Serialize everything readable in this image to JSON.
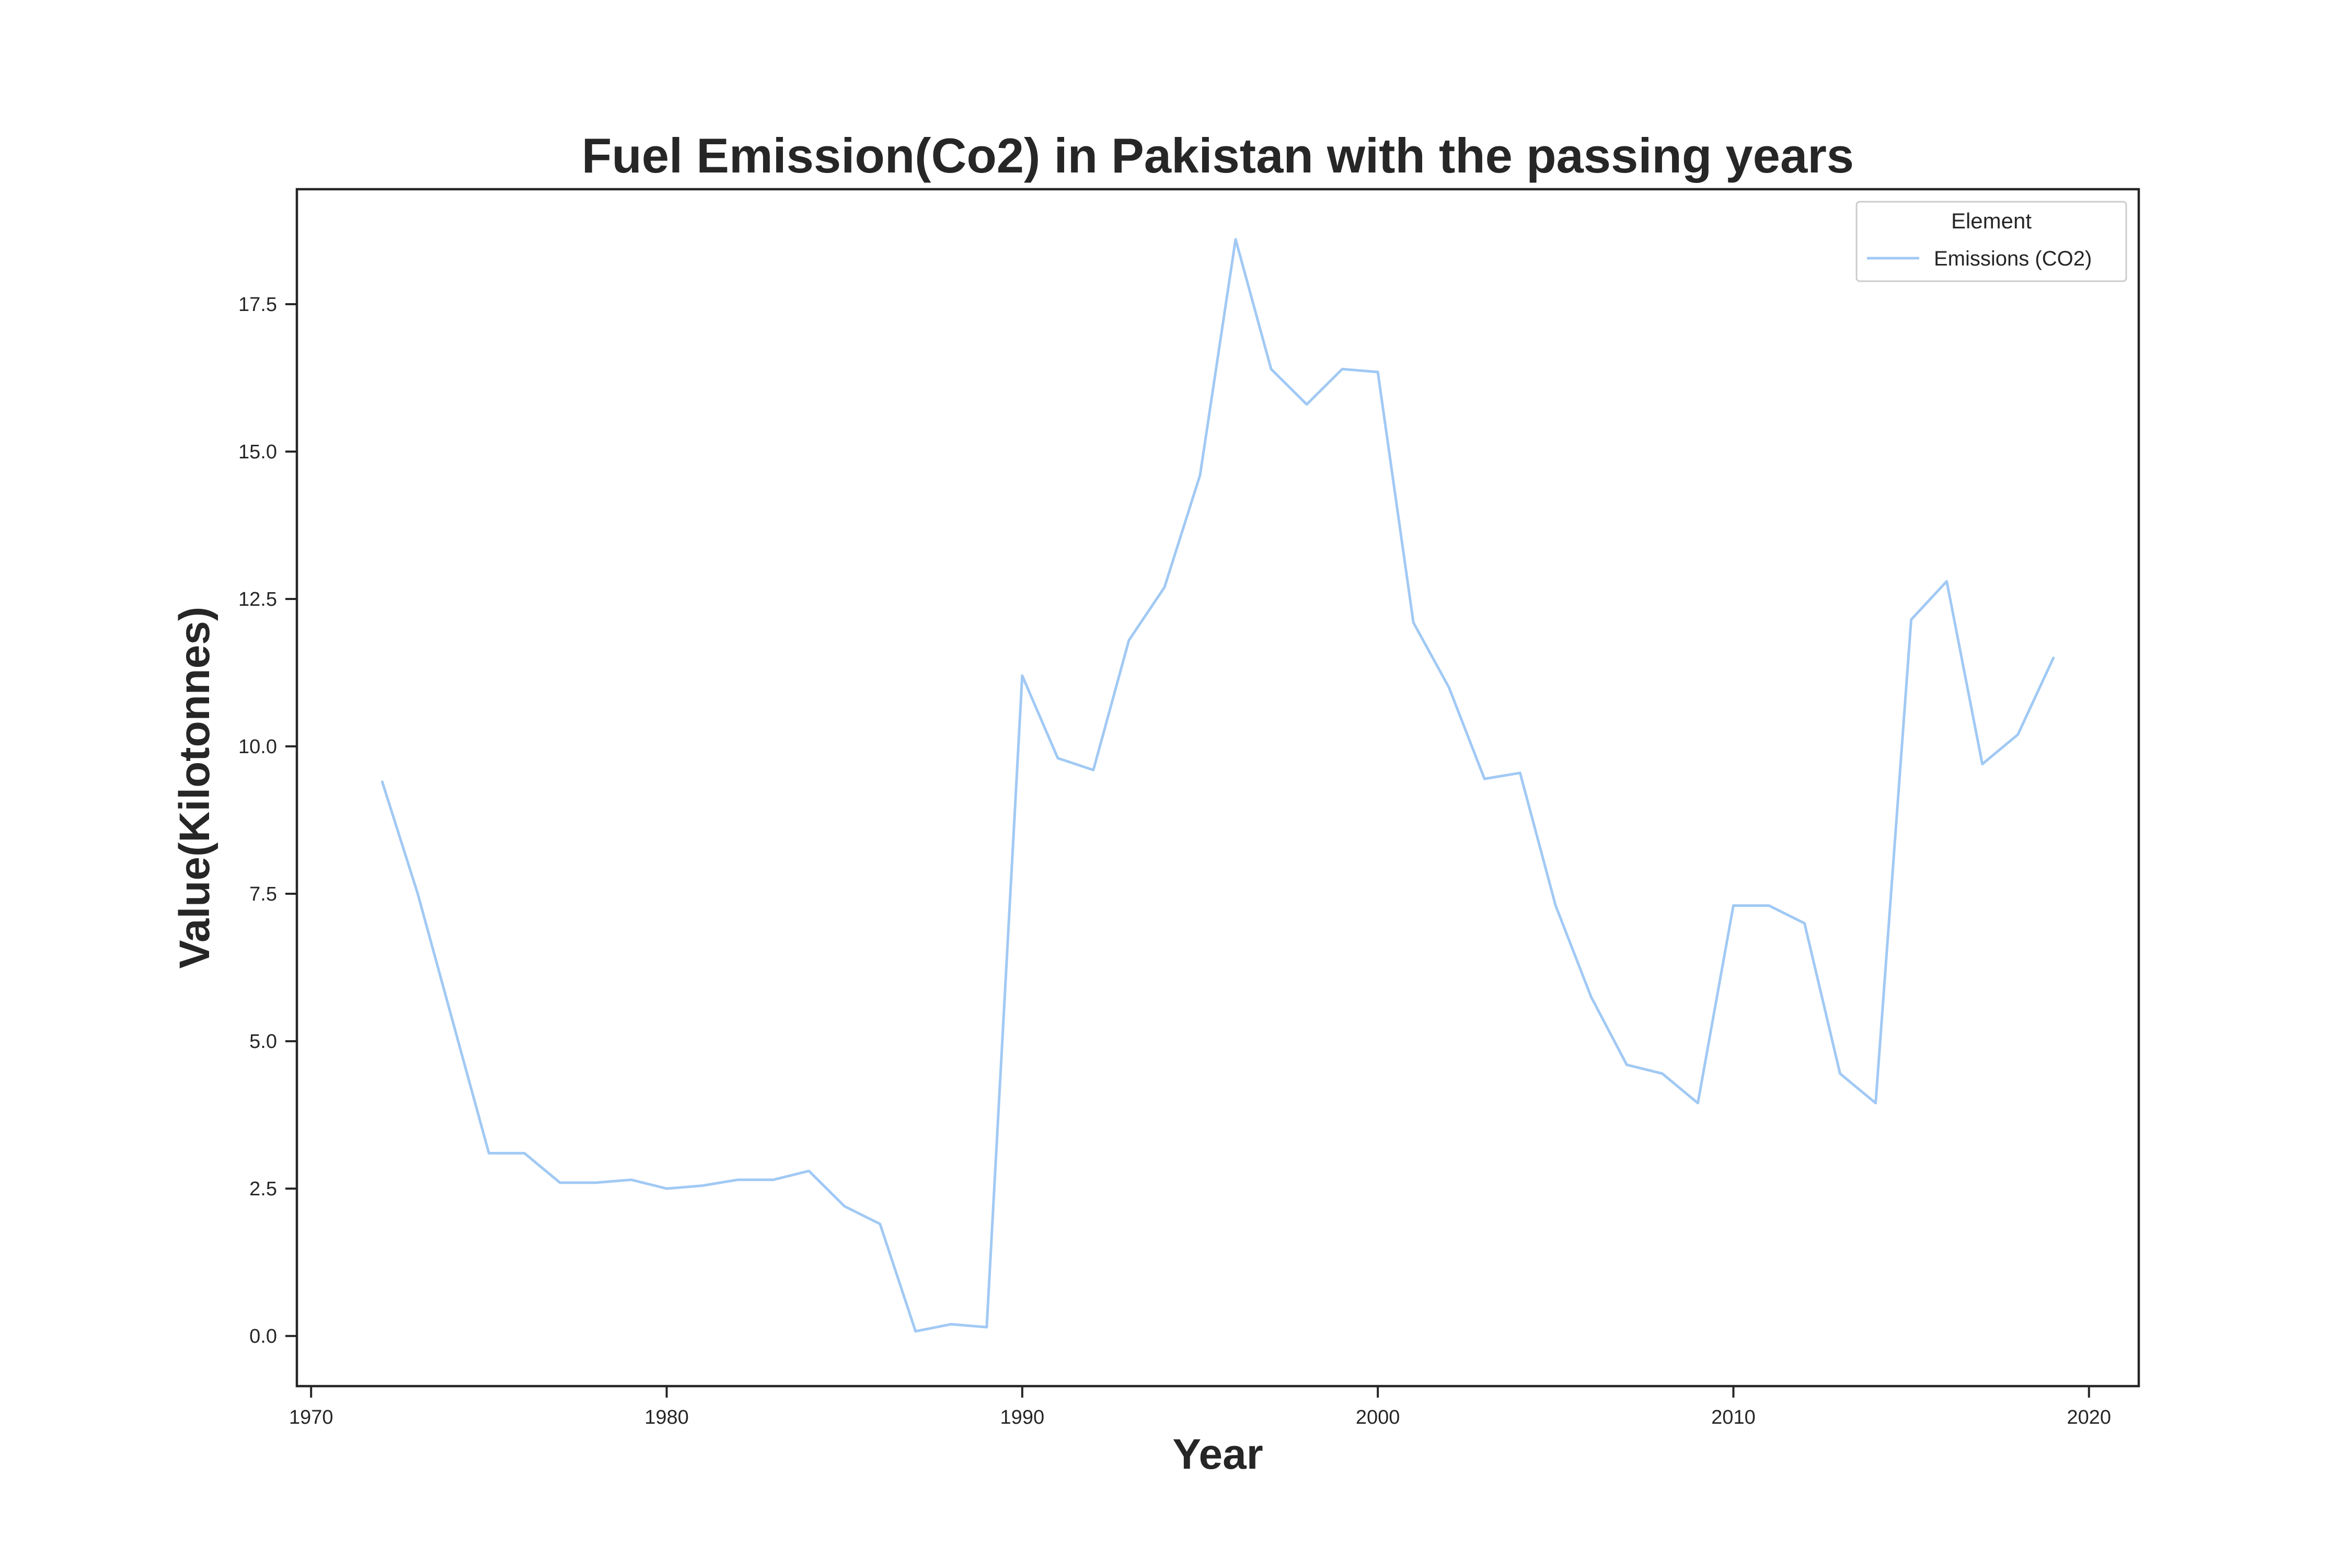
{
  "chart_data": {
    "type": "line",
    "title": "Fuel Emission(Co2) in Pakistan with the passing years",
    "xlabel": "Year",
    "ylabel": "Value(Kilotonnes)",
    "xlim": [
      1969.6,
      2021.4
    ],
    "ylim": [
      -0.85,
      19.45
    ],
    "xticks": [
      1970,
      1980,
      1990,
      2000,
      2010,
      2020
    ],
    "xtick_labels": [
      "1970",
      "1980",
      "1990",
      "2000",
      "2010",
      "2020"
    ],
    "yticks": [
      0,
      2.5,
      5,
      7.5,
      10,
      12.5,
      15,
      17.5
    ],
    "ytick_labels": [
      "0.0",
      "2.5",
      "5.0",
      "7.5",
      "10.0",
      "12.5",
      "15.0",
      "17.5"
    ],
    "grid": false,
    "legend": {
      "title": "Element",
      "position": "top-right",
      "entries": [
        "Emissions (CO2)"
      ]
    },
    "series": [
      {
        "name": "Emissions (CO2)",
        "color": "#a1c9f4",
        "x": [
          1972,
          1973,
          1974,
          1975,
          1976,
          1977,
          1978,
          1979,
          1980,
          1981,
          1982,
          1983,
          1984,
          1985,
          1986,
          1987,
          1988,
          1989,
          1990,
          1991,
          1992,
          1993,
          1994,
          1995,
          1996,
          1997,
          1998,
          1999,
          2000,
          2001,
          2002,
          2003,
          2004,
          2005,
          2006,
          2007,
          2008,
          2009,
          2010,
          2011,
          2012,
          2013,
          2014,
          2015,
          2016,
          2017,
          2018,
          2019
        ],
        "y": [
          9.4,
          7.5,
          5.3,
          3.1,
          3.1,
          2.6,
          2.6,
          2.65,
          2.5,
          2.55,
          2.65,
          2.65,
          2.8,
          2.2,
          1.9,
          0.08,
          0.2,
          0.15,
          11.2,
          9.8,
          9.6,
          11.8,
          12.7,
          14.6,
          18.6,
          16.4,
          15.8,
          16.4,
          16.35,
          12.1,
          11.0,
          9.45,
          9.55,
          7.3,
          5.75,
          4.6,
          4.45,
          3.95,
          7.3,
          7.3,
          7.0,
          4.45,
          3.95,
          12.15,
          12.8,
          9.7,
          10.2,
          11.5
        ]
      }
    ]
  }
}
